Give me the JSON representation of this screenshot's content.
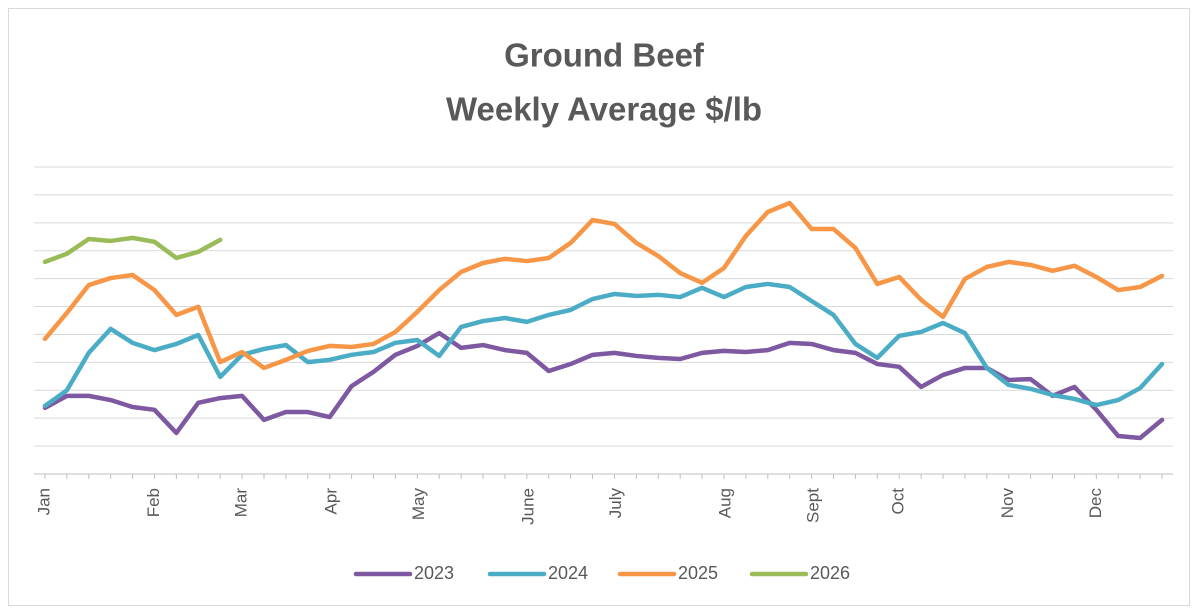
{
  "chart_data": {
    "type": "line",
    "title": [
      "Ground Beef",
      "Weekly Average $/lb"
    ],
    "x": [
      0,
      1,
      2,
      3,
      4,
      5,
      6,
      7,
      8,
      9,
      10,
      11,
      12,
      13,
      14,
      15,
      16,
      17,
      18,
      19,
      20,
      21,
      22,
      23,
      24,
      25,
      26,
      27,
      28,
      29,
      30,
      31,
      32,
      33,
      34,
      35,
      36,
      37,
      38,
      39,
      40,
      41,
      42,
      43,
      44,
      45,
      46,
      47,
      48,
      49,
      50,
      51
    ],
    "xlim": [
      -0.5,
      51.5
    ],
    "xticks": [
      {
        "value": 0,
        "label": "Jan"
      },
      {
        "value": 5,
        "label": "Feb"
      },
      {
        "value": 9,
        "label": "Mar"
      },
      {
        "value": 13.1,
        "label": "Apr"
      },
      {
        "value": 17.1,
        "label": "May"
      },
      {
        "value": 22.1,
        "label": "June"
      },
      {
        "value": 26.1,
        "label": "July"
      },
      {
        "value": 31.1,
        "label": "Aug"
      },
      {
        "value": 35.1,
        "label": "Sept"
      },
      {
        "value": 39,
        "label": "Oct"
      },
      {
        "value": 44,
        "label": "Nov"
      },
      {
        "value": 48,
        "label": "Dec"
      }
    ],
    "ylim": [
      0,
      11
    ],
    "yticks": [
      1,
      2,
      3,
      4,
      5,
      6,
      7,
      8,
      9,
      10,
      11
    ],
    "grid": true,
    "legend": "bottom",
    "series": [
      {
        "name": "2023",
        "color": "#7e58a0",
        "values": [
          2.37,
          2.8,
          2.8,
          2.65,
          2.4,
          2.3,
          1.47,
          2.55,
          2.72,
          2.8,
          1.94,
          2.22,
          2.22,
          2.04,
          3.15,
          3.66,
          4.27,
          4.59,
          5.05,
          4.52,
          4.62,
          4.44,
          4.34,
          3.69,
          3.94,
          4.27,
          4.34,
          4.23,
          4.16,
          4.12,
          4.34,
          4.41,
          4.37,
          4.44,
          4.7,
          4.66,
          4.44,
          4.34,
          3.94,
          3.84,
          3.12,
          3.55,
          3.8,
          3.8,
          3.37,
          3.4,
          2.8,
          3.12,
          2.3,
          1.36,
          1.29,
          1.94
        ]
      },
      {
        "name": "2024",
        "color": "#4bacc6",
        "values": [
          2.44,
          3.0,
          4.34,
          5.2,
          4.7,
          4.44,
          4.66,
          4.98,
          3.48,
          4.27,
          4.48,
          4.62,
          4.01,
          4.09,
          4.27,
          4.37,
          4.7,
          4.8,
          4.23,
          5.27,
          5.48,
          5.59,
          5.45,
          5.7,
          5.88,
          6.27,
          6.45,
          6.38,
          6.42,
          6.34,
          6.67,
          6.34,
          6.7,
          6.81,
          6.7,
          6.2,
          5.7,
          4.66,
          4.16,
          4.95,
          5.09,
          5.41,
          5.05,
          3.8,
          3.19,
          3.05,
          2.83,
          2.69,
          2.47,
          2.65,
          3.08,
          3.94
        ]
      },
      {
        "name": "2025",
        "color": "#f79646",
        "values": [
          4.84,
          5.77,
          6.77,
          7.02,
          7.13,
          6.59,
          5.7,
          5.99,
          4.01,
          4.37,
          3.8,
          4.09,
          4.41,
          4.59,
          4.55,
          4.66,
          5.09,
          5.81,
          6.59,
          7.24,
          7.56,
          7.71,
          7.63,
          7.74,
          8.28,
          9.1,
          8.96,
          8.28,
          7.81,
          7.2,
          6.85,
          7.38,
          8.53,
          9.39,
          9.71,
          8.78,
          8.78,
          8.1,
          6.81,
          7.06,
          6.24,
          5.63,
          6.99,
          7.42,
          7.6,
          7.49,
          7.28,
          7.46,
          7.06,
          6.59,
          6.7,
          7.1
        ]
      },
      {
        "name": "2026",
        "color": "#9bbb59",
        "values": [
          7.6,
          7.89,
          8.42,
          8.35,
          8.46,
          8.32,
          7.74,
          7.96,
          8.39,
          null,
          null,
          null,
          null,
          null,
          null,
          null,
          null,
          null,
          null,
          null,
          null,
          null,
          null,
          null,
          null,
          null,
          null,
          null,
          null,
          null,
          null,
          null,
          null,
          null,
          null,
          null,
          null,
          null,
          null,
          null,
          null,
          null,
          null,
          null,
          null,
          null,
          null,
          null,
          null,
          null,
          null,
          null
        ]
      }
    ]
  }
}
